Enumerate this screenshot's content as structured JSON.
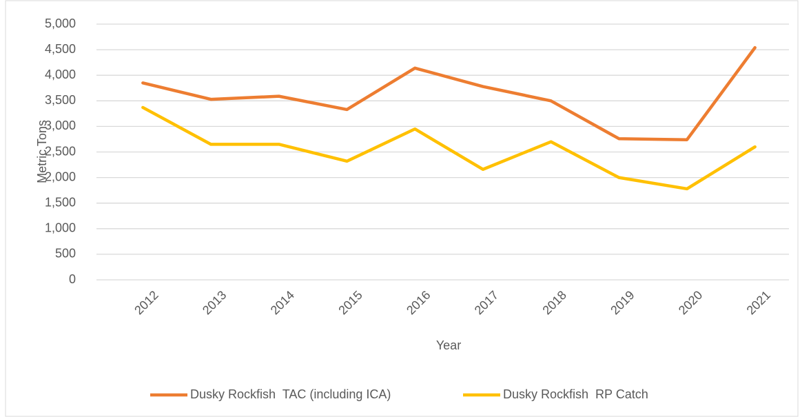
{
  "chart_data": {
    "type": "line",
    "xlabel": "Year",
    "ylabel": "Metric Tons",
    "categories": [
      "2012",
      "2013",
      "2014",
      "2015",
      "2016",
      "2017",
      "2018",
      "2019",
      "2020",
      "2021"
    ],
    "series": [
      {
        "name": "Dusky Rockfish  TAC (including ICA)",
        "color": "#ed7d31",
        "values": [
          3850,
          3530,
          3590,
          3330,
          4140,
          3780,
          3500,
          2760,
          2740,
          4540
        ]
      },
      {
        "name": "Dusky Rockfish  RP Catch",
        "color": "#ffc000",
        "values": [
          3370,
          2650,
          2650,
          2320,
          2950,
          2160,
          2700,
          2000,
          1780,
          2600
        ]
      }
    ],
    "ylim": [
      0,
      5000
    ],
    "yticks": [
      0,
      500,
      {
        "value": 1000,
        "label": "1,000"
      },
      {
        "value": 1500,
        "label": "1,500"
      },
      {
        "value": 2000,
        "label": "2,000"
      },
      {
        "value": 2500,
        "label": "2,500"
      },
      {
        "value": 3000,
        "label": "3,000"
      },
      {
        "value": 3500,
        "label": "3,500"
      },
      {
        "value": 4000,
        "label": "4,000"
      },
      {
        "value": 4500,
        "label": "4,500"
      },
      {
        "value": 5000,
        "label": "5,000"
      }
    ],
    "grid": true,
    "legend": "bottom"
  }
}
